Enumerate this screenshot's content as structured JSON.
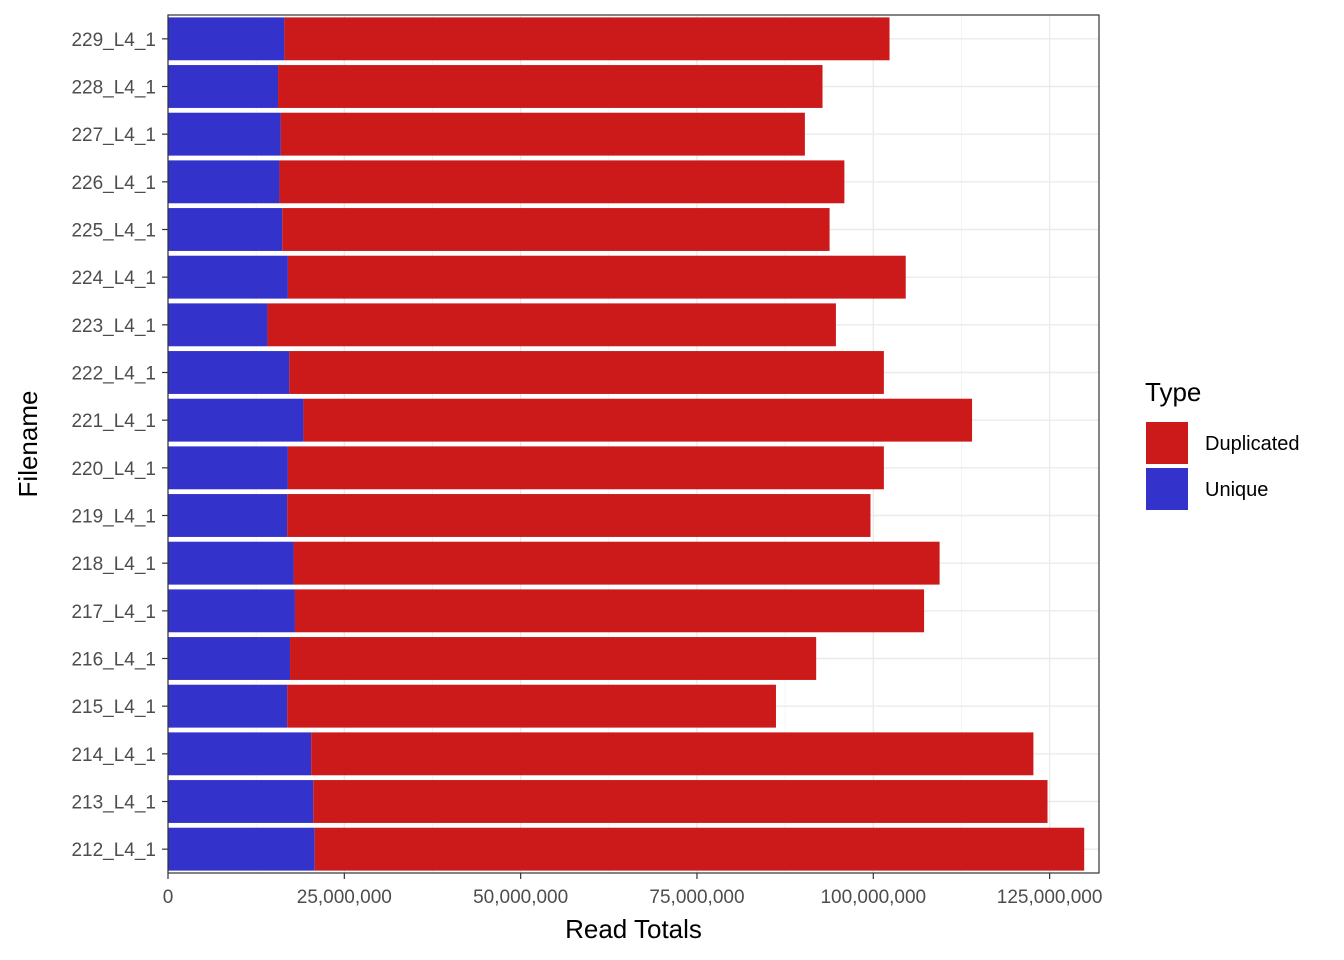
{
  "chart_data": {
    "type": "bar",
    "orientation": "horizontal",
    "stacked": true,
    "xlabel": "Read Totals",
    "ylabel": "Filename",
    "xlim": [
      0,
      132000000
    ],
    "x_ticks": [
      0,
      25000000,
      50000000,
      75000000,
      100000000,
      125000000
    ],
    "x_tick_labels": [
      "0",
      "25,000,000",
      "50,000,000",
      "75,000,000",
      "100,000,000",
      "125,000,000"
    ],
    "grid": true,
    "legend": {
      "title": "Type",
      "position": "right",
      "entries": [
        {
          "label": "Duplicated",
          "color": "#cc1a1a"
        },
        {
          "label": "Unique",
          "color": "#3333cc"
        }
      ]
    },
    "categories": [
      "229_L4_1",
      "228_L4_1",
      "227_L4_1",
      "226_L4_1",
      "225_L4_1",
      "224_L4_1",
      "223_L4_1",
      "222_L4_1",
      "221_L4_1",
      "220_L4_1",
      "219_L4_1",
      "218_L4_1",
      "217_L4_1",
      "216_L4_1",
      "215_L4_1",
      "214_L4_1",
      "213_L4_1",
      "212_L4_1"
    ],
    "series": [
      {
        "name": "Unique",
        "color": "#3333cc",
        "values": [
          16500000,
          15600000,
          16000000,
          15800000,
          16200000,
          17000000,
          14100000,
          17200000,
          19200000,
          17000000,
          16900000,
          17800000,
          18000000,
          17300000,
          16900000,
          20300000,
          20600000,
          20800000
        ]
      },
      {
        "name": "Duplicated",
        "color": "#cc1a1a",
        "values": [
          85800000,
          77200000,
          74300000,
          80100000,
          77600000,
          87600000,
          80600000,
          84300000,
          94800000,
          84500000,
          82700000,
          91600000,
          89200000,
          74600000,
          69300000,
          102400000,
          104100000,
          109100000
        ]
      }
    ]
  }
}
